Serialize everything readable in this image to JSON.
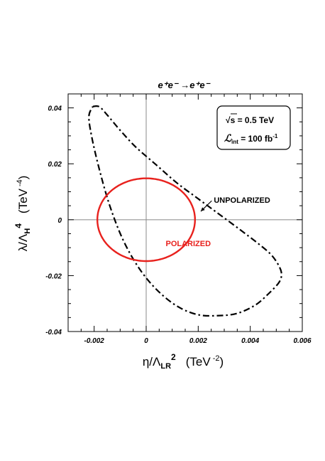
{
  "chart_data": {
    "type": "line",
    "title": "e⁺e⁻ →e⁺e⁻",
    "xlabel": "η/Λ",
    "xlabel_sub": "LR",
    "xlabel_sup": "2",
    "xlabel_unit": "(TeV",
    "xlabel_unit_exp": "-2",
    "xlabel_unit_close": ")",
    "ylabel": "λ/Λ",
    "ylabel_sub": "H",
    "ylabel_sup": "4",
    "ylabel_unit": "(TeV",
    "ylabel_unit_exp": "-4",
    "ylabel_unit_close": ")",
    "xlim": [
      -0.003,
      0.006
    ],
    "ylim": [
      -0.04,
      0.045
    ],
    "x_ticks": [
      {
        "value": -0.002,
        "label": "-0.002"
      },
      {
        "value": 0,
        "label": "0"
      },
      {
        "value": 0.002,
        "label": "0.002"
      },
      {
        "value": 0.004,
        "label": "0.004"
      },
      {
        "value": 0.006,
        "label": "0.006"
      }
    ],
    "y_ticks": [
      {
        "value": -0.04,
        "label": "-0.04"
      },
      {
        "value": -0.02,
        "label": "-0.02"
      },
      {
        "value": 0,
        "label": "0"
      },
      {
        "value": 0.02,
        "label": "0.02"
      },
      {
        "value": 0.04,
        "label": "0.04"
      }
    ],
    "zero_lines": true,
    "grid": false,
    "legend_box": {
      "position": "top-right",
      "line1": "√s = 0.5 TeV",
      "line2_symbol": "ℒ",
      "line2_sub": "int",
      "line2_rest": " = 100 fb",
      "line2_sup": "-1"
    },
    "series": [
      {
        "name": "UNPOLARIZED",
        "color": "#000000",
        "style": "dash-dot",
        "label_at": [
          0.0026,
          0.006
        ],
        "arrow_to": [
          0.0021,
          0.003
        ],
        "points": [
          [
            -0.00205,
            0.0405
          ],
          [
            -0.0018,
            0.0404
          ],
          [
            -0.0015,
            0.0375
          ],
          [
            -0.001,
            0.032
          ],
          [
            -0.0004,
            0.026
          ],
          [
            0.0004,
            0.0195
          ],
          [
            0.0012,
            0.013
          ],
          [
            0.002,
            0.0075
          ],
          [
            0.0028,
            0.002
          ],
          [
            0.0036,
            -0.0035
          ],
          [
            0.0043,
            -0.0085
          ],
          [
            0.0048,
            -0.0125
          ],
          [
            0.0051,
            -0.0165
          ],
          [
            0.0052,
            -0.0195
          ],
          [
            0.0051,
            -0.0225
          ],
          [
            0.0047,
            -0.0265
          ],
          [
            0.0042,
            -0.0305
          ],
          [
            0.0035,
            -0.0335
          ],
          [
            0.0028,
            -0.0343
          ],
          [
            0.002,
            -0.034
          ],
          [
            0.0012,
            -0.031
          ],
          [
            0.0004,
            -0.025
          ],
          [
            -0.0003,
            -0.017
          ],
          [
            -0.0009,
            -0.007
          ],
          [
            -0.0014,
            0.005
          ],
          [
            -0.0018,
            0.018
          ],
          [
            -0.0021,
            0.03
          ],
          [
            -0.0022,
            0.037
          ],
          [
            -0.00205,
            0.0405
          ]
        ]
      },
      {
        "name": "POLARIZED",
        "color": "#e8211d",
        "style": "solid",
        "label_at": [
          0.00075,
          -0.0095
        ],
        "ellipse": {
          "cx": 0,
          "cy": 0,
          "x_extent": 0.00068,
          "y_extent": 0.0148,
          "t_at_x_max": -1.2
        }
      }
    ]
  }
}
